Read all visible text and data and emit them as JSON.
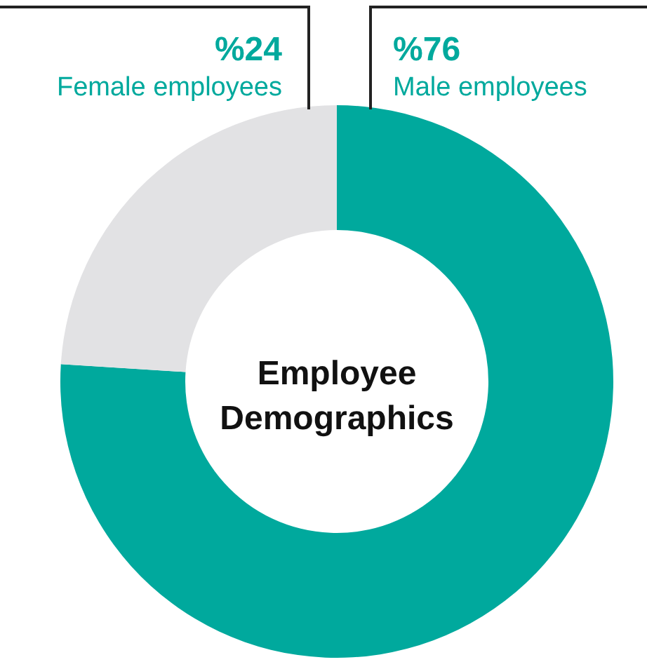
{
  "chart_data": {
    "type": "donut",
    "title": "Employee Demographics",
    "categories": [
      "Male employees",
      "Female employees"
    ],
    "values": [
      76,
      24
    ],
    "colors": [
      "#00a99d",
      "#e2e2e4"
    ],
    "value_labels": [
      "%76",
      "%24"
    ]
  }
}
